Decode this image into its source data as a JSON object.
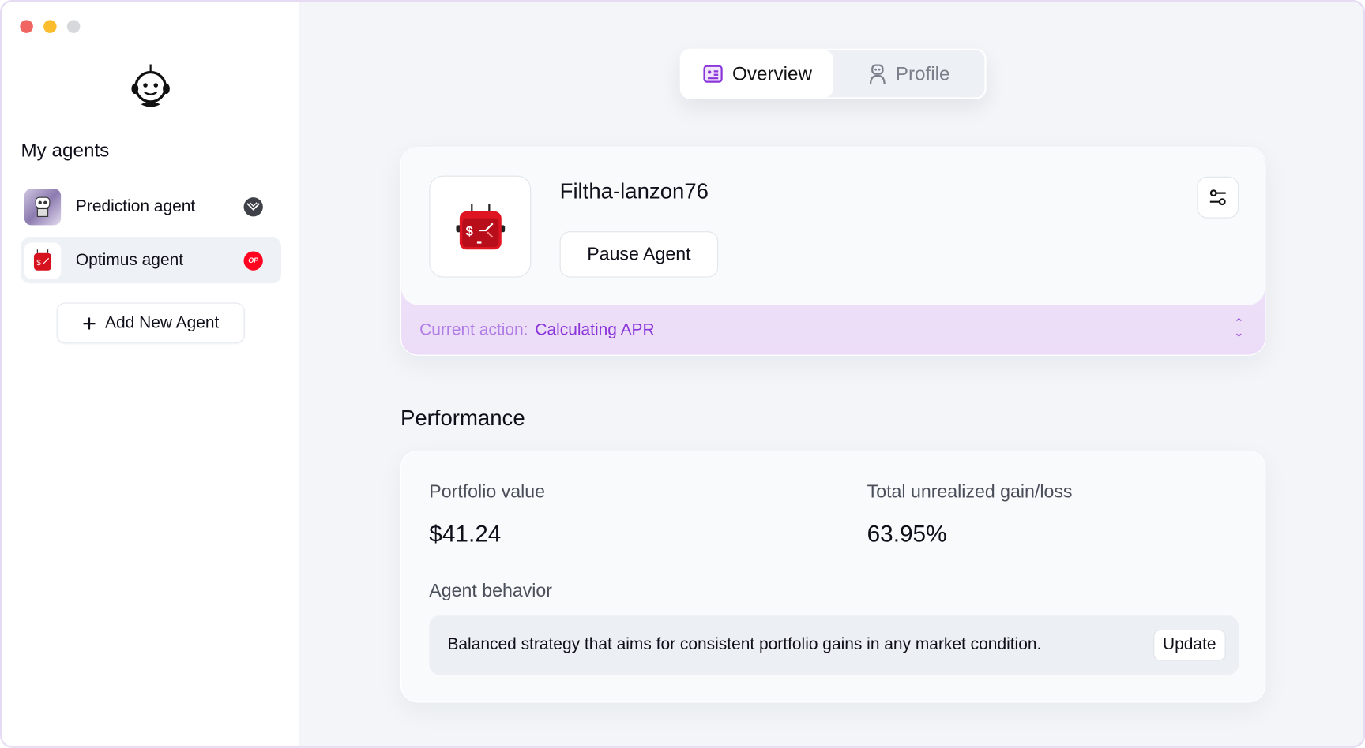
{
  "window": {
    "controls": {
      "close_color": "#f06462",
      "minimize_color": "#fbbd2e",
      "maximize_color": "#d6d8dc"
    }
  },
  "sidebar": {
    "heading": "My agents",
    "agents": [
      {
        "label": "Prediction agent",
        "chain_icon": "gnosis-icon",
        "selected": false
      },
      {
        "label": "Optimus agent",
        "chain_icon": "optimism-icon",
        "chain_badge": "OP",
        "selected": true
      }
    ],
    "add_label": "Add New Agent"
  },
  "tabs": [
    {
      "label": "Overview",
      "icon": "id-card-icon",
      "active": true
    },
    {
      "label": "Profile",
      "icon": "robot-person-icon",
      "active": false
    }
  ],
  "agent_card": {
    "name": "Filtha-lanzon76",
    "pause_label": "Pause Agent",
    "current_action_label": "Current action:",
    "current_action_value": "Calculating APR"
  },
  "performance": {
    "title": "Performance",
    "portfolio_label": "Portfolio value",
    "portfolio_value": "$41.24",
    "gain_label": "Total unrealized gain/loss",
    "gain_value": "63.95%",
    "behavior_label": "Agent behavior",
    "behavior_text": "Balanced strategy that aims for consistent portfolio gains in any market condition.",
    "update_label": "Update"
  },
  "colors": {
    "accent": "#8a35d9",
    "optimism": "#ff0420"
  }
}
